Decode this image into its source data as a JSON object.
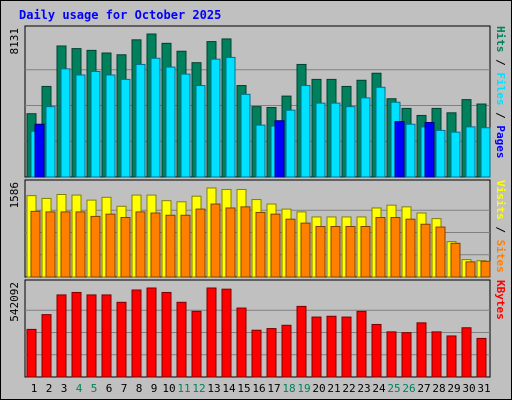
{
  "chart_data": {
    "type": "bar",
    "title": "Daily usage for October 2025",
    "categories": [
      "1",
      "2",
      "3",
      "4",
      "5",
      "6",
      "7",
      "8",
      "9",
      "10",
      "11",
      "12",
      "13",
      "14",
      "15",
      "16",
      "17",
      "18",
      "19",
      "20",
      "21",
      "22",
      "23",
      "24",
      "25",
      "26",
      "27",
      "28",
      "29",
      "30",
      "31"
    ],
    "weekend_days": [
      "4",
      "5",
      "11",
      "12",
      "18",
      "19",
      "25",
      "26"
    ],
    "panels": [
      {
        "id": "hits",
        "max_label": "8131",
        "ylim": [
          0,
          8131
        ],
        "legend": [
          "Pages",
          "Files",
          "Hits"
        ],
        "series": [
          {
            "name": "Hits",
            "color": "#00805c",
            "values": [
              3600,
              5150,
              7450,
              7300,
              7200,
              7050,
              6950,
              7800,
              8131,
              7600,
              7150,
              6500,
              7700,
              7850,
              5200,
              4000,
              3950,
              4600,
              6400,
              5550,
              5550,
              5150,
              5500,
              5900,
              4450,
              3900,
              3500,
              3900,
              3650,
              4400,
              4150
            ]
          },
          {
            "name": "Files",
            "color": "#00e0ff",
            "values": [
              2600,
              4000,
              6150,
              5800,
              6000,
              5800,
              5550,
              6400,
              6750,
              6250,
              5850,
              5200,
              6700,
              6800,
              4700,
              2950,
              2900,
              3800,
              5200,
              4200,
              4200,
              4000,
              4500,
              5100,
              4250,
              3000,
              2850,
              2650,
              2550,
              2850,
              2800
            ]
          },
          {
            "name": "Pages",
            "color": "#0000ff",
            "values": [
              3000,
              0,
              0,
              0,
              0,
              0,
              0,
              0,
              0,
              0,
              0,
              0,
              0,
              0,
              0,
              0,
              3200,
              0,
              0,
              0,
              0,
              0,
              0,
              0,
              3150,
              0,
              3100,
              0,
              0,
              0,
              0
            ]
          }
        ]
      },
      {
        "id": "visits",
        "max_label": "1586",
        "ylim": [
          0,
          1586
        ],
        "legend": [
          "Sites",
          "Visits"
        ],
        "series": [
          {
            "name": "Visits",
            "color": "#ffff00",
            "values": [
              1450,
              1400,
              1470,
              1460,
              1370,
              1420,
              1260,
              1460,
              1460,
              1360,
              1340,
              1440,
              1586,
              1560,
              1560,
              1380,
              1300,
              1210,
              1160,
              1070,
              1070,
              1070,
              1070,
              1230,
              1280,
              1250,
              1140,
              1040,
              630,
              310,
              290
            ]
          },
          {
            "name": "Sites",
            "color": "#ff8000",
            "values": [
              1170,
              1160,
              1160,
              1160,
              1080,
              1120,
              1060,
              1160,
              1140,
              1100,
              1100,
              1210,
              1300,
              1230,
              1250,
              1150,
              1120,
              1030,
              960,
              900,
              900,
              900,
              900,
              1060,
              1060,
              1030,
              940,
              890,
              600,
              270,
              280
            ]
          }
        ]
      },
      {
        "id": "kbytes",
        "max_label": "542092",
        "ylim": [
          0,
          542092
        ],
        "legend": [
          "KBytes"
        ],
        "series": [
          {
            "name": "KBytes",
            "color": "#ff0000",
            "values": [
              290000,
              380000,
              500000,
              515000,
              500000,
              500000,
              455000,
              530000,
              542092,
              515000,
              455000,
              400000,
              542092,
              535000,
              420000,
              285000,
              295000,
              315000,
              430000,
              365000,
              370000,
              365000,
              400000,
              320000,
              275000,
              270000,
              330000,
              275000,
              250000,
              300000,
              235000
            ]
          }
        ]
      }
    ],
    "colors": {
      "background": "#c0c0c0",
      "grid": "#808080",
      "title_text": "#0000ff",
      "weekday_label": "#000000",
      "weekend_label": "#00805c"
    }
  }
}
